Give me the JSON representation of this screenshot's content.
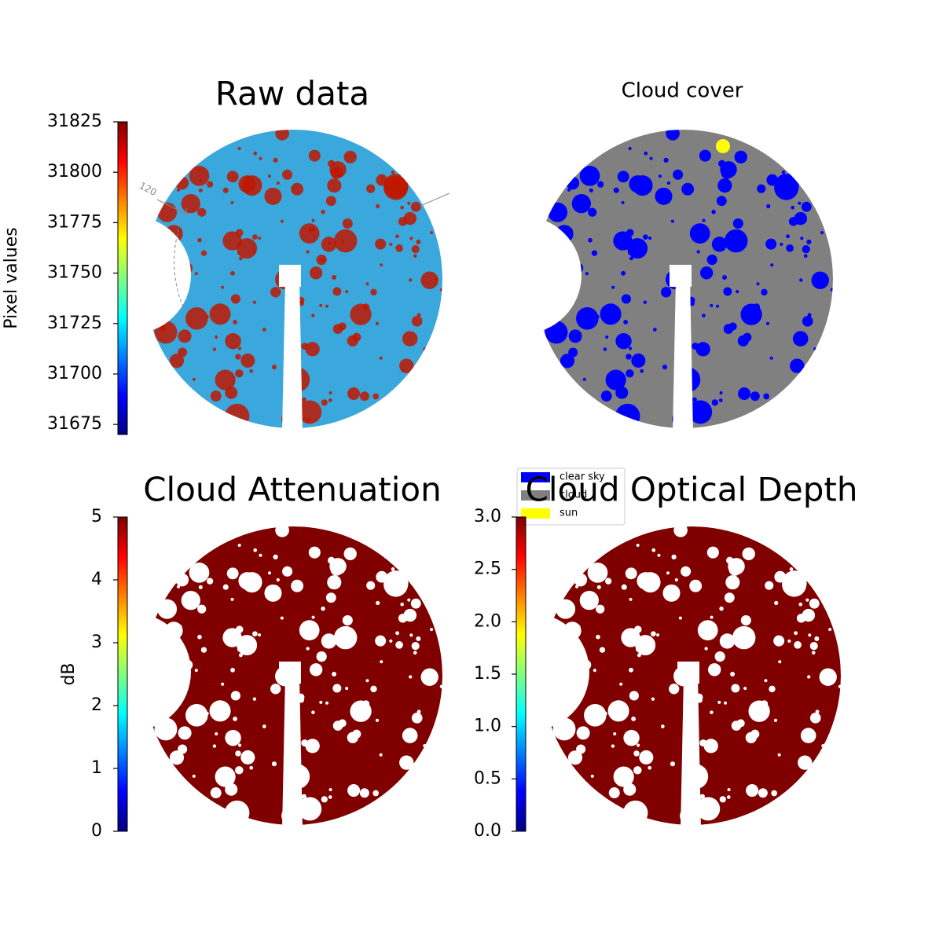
{
  "chart_data": [
    {
      "type": "image",
      "title": "Raw data",
      "colorbar_label": "Pixel values",
      "colormap": "jet",
      "ylim": [
        31670,
        31825
      ],
      "yticks": [
        31675,
        31700,
        31725,
        31750,
        31775,
        31800,
        31825
      ],
      "annotation": "120"
    },
    {
      "type": "mask",
      "title": "Cloud cover",
      "legend": [
        {
          "name": "clear sky",
          "color": "#0000ff"
        },
        {
          "name": "cloud",
          "color": "#808080"
        },
        {
          "name": "sun",
          "color": "#ffff00"
        }
      ]
    },
    {
      "type": "image",
      "title": "Cloud Attenuation",
      "colorbar_label": "dB",
      "colormap": "jet",
      "ylim": [
        0,
        5
      ],
      "yticks": [
        0,
        1,
        2,
        3,
        4,
        5
      ]
    },
    {
      "type": "image",
      "title": "Cloud Optical Depth",
      "colormap": "jet",
      "ylim": [
        0,
        3
      ],
      "yticks": [
        {
          "value": 0,
          "label": "0.0"
        },
        {
          "value": 0.5,
          "label": "0.5"
        },
        {
          "value": 1,
          "label": "1.0"
        },
        {
          "value": 1.5,
          "label": "1.5"
        },
        {
          "value": 2,
          "label": "2.0"
        },
        {
          "value": 2.5,
          "label": "2.5"
        },
        {
          "value": 3,
          "label": "3.0"
        }
      ]
    }
  ]
}
